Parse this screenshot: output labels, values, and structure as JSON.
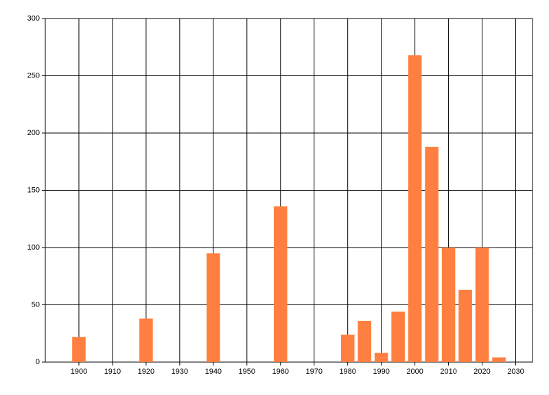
{
  "chart_data": {
    "type": "bar",
    "x": [
      1900,
      1920,
      1940,
      1960,
      1980,
      1985,
      1990,
      1995,
      2000,
      2005,
      2010,
      2015,
      2020,
      2025
    ],
    "values": [
      22,
      38,
      95,
      136,
      24,
      36,
      8,
      44,
      268,
      188,
      100,
      63,
      100,
      4
    ],
    "color": "#ff7f40",
    "xlim": [
      1890,
      2035
    ],
    "xticks": [
      1900,
      1910,
      1920,
      1930,
      1940,
      1950,
      1960,
      1970,
      1980,
      1990,
      2000,
      2010,
      2020,
      2030
    ],
    "ylim": [
      0,
      300
    ],
    "yticks": [
      0,
      50,
      100,
      150,
      200,
      250,
      300
    ],
    "grid": true
  }
}
